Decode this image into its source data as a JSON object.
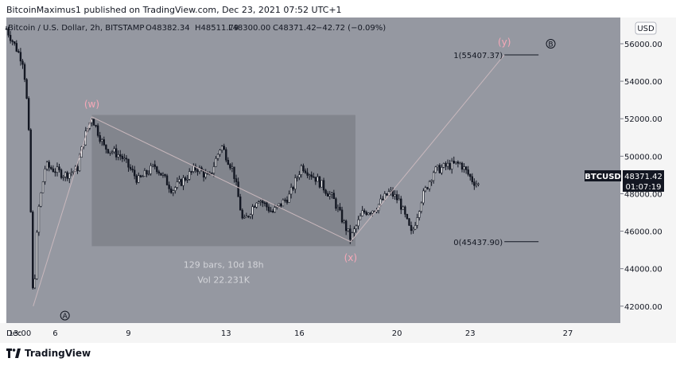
{
  "header": {
    "publisher_line": "BitcoinMaximus1 published on TradingView.com, Dec 23, 2021 07:52 UTC+1"
  },
  "legend": {
    "title": "Bitcoin / U.S. Dollar, 2h, BITSTAMP",
    "open": "O48382.34",
    "high": "H48511.79",
    "low": "L48300.00",
    "close": "C48371.42",
    "change": "−42.72 (−0.09%)"
  },
  "currency_button": "USD",
  "price_tag": {
    "symbol": "BTCUSD",
    "price": "48371.42",
    "countdown": "01:07:19"
  },
  "footer": {
    "brand": "TradingView"
  },
  "colors": {
    "plot_bg": "#9598a1",
    "axis_bg": "#f5f5f5",
    "candle": "#131722",
    "wave_line": "#c9b8bd",
    "wave_label": "#f7a8b8",
    "range_box": "#7c7f87",
    "range_text": "#d3d4d9"
  },
  "chart_data": {
    "type": "candlestick",
    "symbol": "BTCUSD",
    "timeframe": "2h",
    "y_axis": {
      "ticks": [
        42000,
        44000,
        46000,
        48000,
        50000,
        52000,
        54000,
        56000
      ],
      "labels": [
        "42000.00",
        "44000.00",
        "46000.00",
        "48000.00",
        "50000.00",
        "52000.00",
        "54000.00",
        "56000.00"
      ],
      "range": [
        41100,
        57400
      ]
    },
    "x_axis": {
      "labels": [
        "Dec",
        "13:00",
        "6",
        "9",
        "13",
        "16",
        "20",
        "23",
        "27"
      ],
      "positions_day": [
        4,
        4.55,
        6,
        9,
        13,
        16,
        20,
        23,
        27
      ],
      "range_day": [
        4,
        29.15
      ]
    },
    "price_path": [
      [
        4.0,
        56800
      ],
      [
        4.7,
        55000
      ],
      [
        4.9,
        52000
      ],
      [
        5.1,
        42000
      ],
      [
        5.3,
        47000
      ],
      [
        5.6,
        49500
      ],
      [
        6.4,
        49000
      ],
      [
        6.9,
        49300
      ],
      [
        7.2,
        51000
      ],
      [
        7.5,
        52100
      ],
      [
        8.0,
        50500
      ],
      [
        8.7,
        50000
      ],
      [
        9.4,
        48700
      ],
      [
        10.1,
        49500
      ],
      [
        10.8,
        48200
      ],
      [
        11.8,
        49400
      ],
      [
        12.3,
        48800
      ],
      [
        12.8,
        50600
      ],
      [
        13.3,
        49200
      ],
      [
        13.7,
        46400
      ],
      [
        14.3,
        47800
      ],
      [
        14.9,
        47000
      ],
      [
        15.6,
        47900
      ],
      [
        16.1,
        49500
      ],
      [
        16.7,
        48800
      ],
      [
        17.4,
        47700
      ],
      [
        18.1,
        45600
      ],
      [
        18.6,
        47000
      ],
      [
        19.1,
        47200
      ],
      [
        19.7,
        48100
      ],
      [
        20.1,
        47600
      ],
      [
        20.6,
        45800
      ],
      [
        21.0,
        47700
      ],
      [
        21.5,
        49200
      ],
      [
        22.1,
        49500
      ],
      [
        22.6,
        49600
      ],
      [
        23.1,
        48700
      ],
      [
        23.4,
        48400
      ]
    ],
    "wave_points": [
      {
        "label": "(w)",
        "day": 7.5,
        "price": 52100
      },
      {
        "label": "(x)",
        "day": 18.1,
        "price": 45437.9
      },
      {
        "label": "(y)",
        "day": 24.4,
        "price": 55407.37
      }
    ],
    "wave_origin": {
      "day": 5.1,
      "price": 42000
    },
    "cycle_labels": [
      {
        "label": "A",
        "day": 6.4,
        "price": 41500
      },
      {
        "label": "B",
        "day": 26.3,
        "price": 56000
      }
    ],
    "fib_levels": [
      {
        "label": "1(55407.37)",
        "price": 55407.37,
        "day_from": 24.4,
        "day_to": 25.8
      },
      {
        "label": "0(45437.90)",
        "price": 45437.9,
        "day_from": 24.4,
        "day_to": 25.8
      }
    ],
    "range_measure": {
      "day_from": 7.5,
      "day_to": 18.3,
      "price_from": 45200,
      "price_to": 52200,
      "bars_text": "129 bars, 10d 18h",
      "vol_text": "Vol 22.231K"
    }
  }
}
